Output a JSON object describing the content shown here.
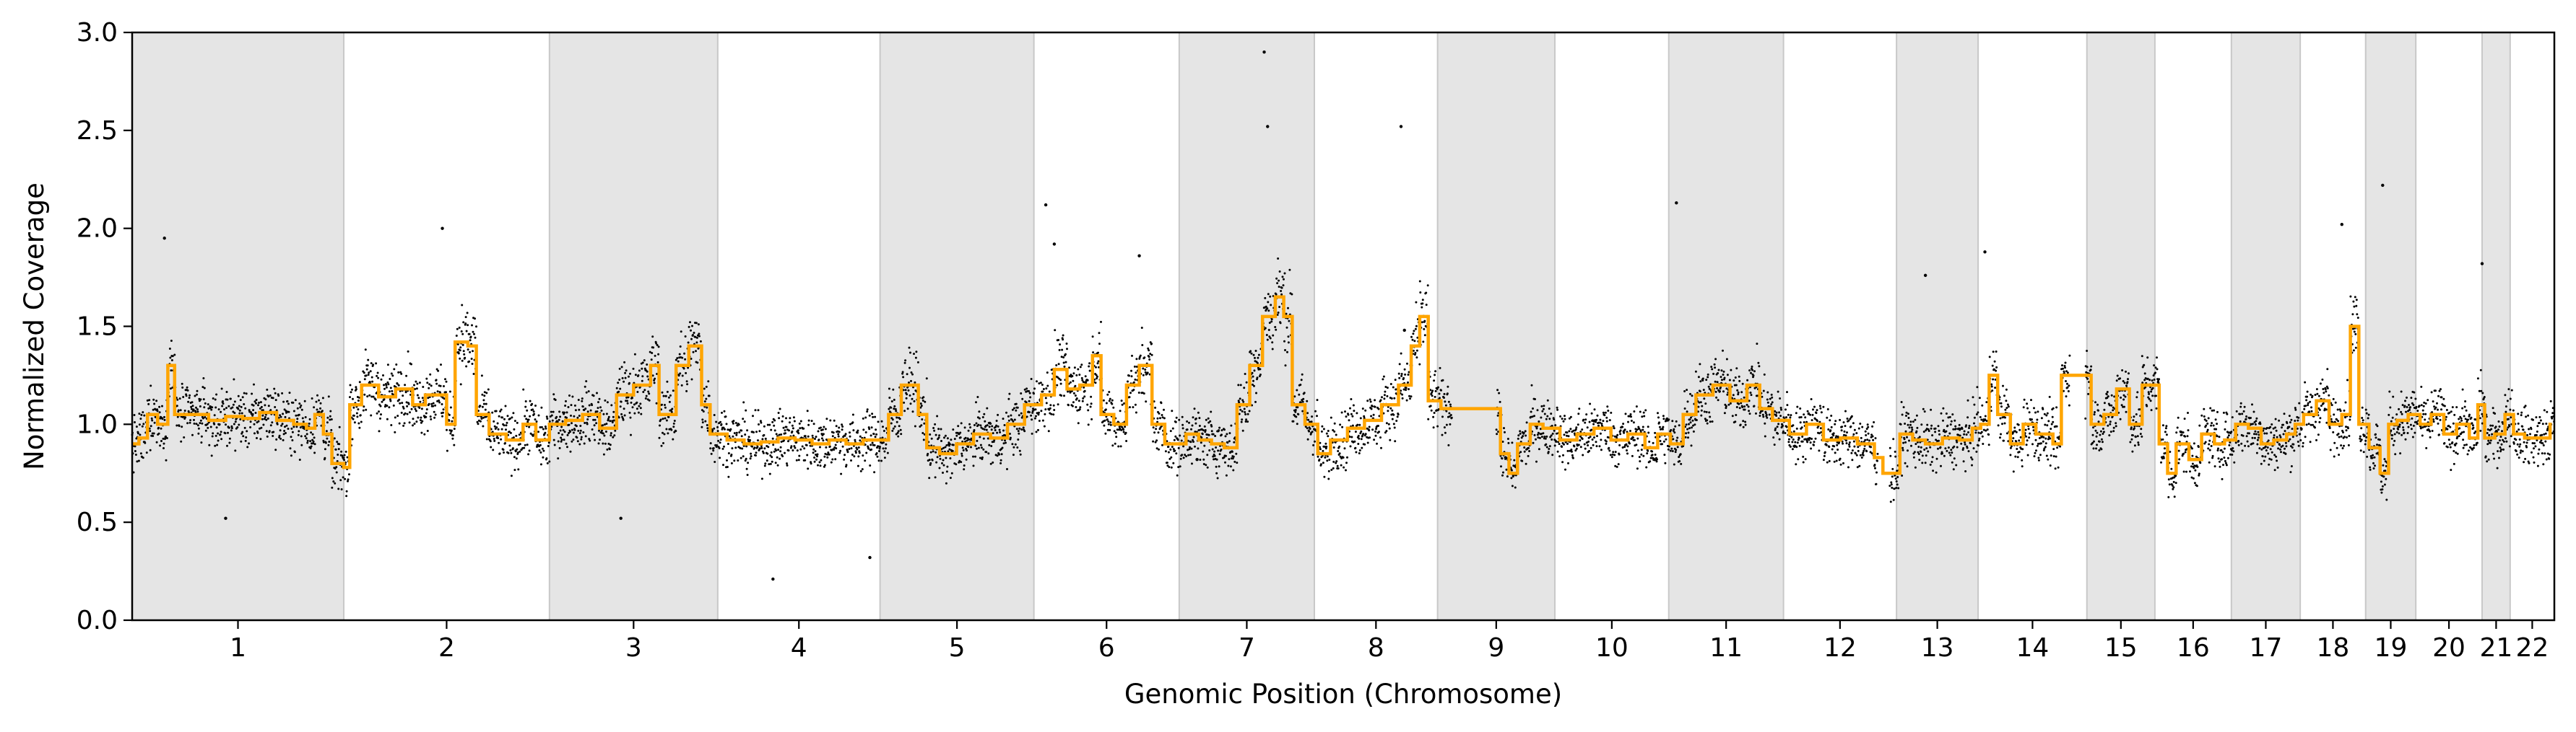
{
  "chart_data": {
    "type": "scatter",
    "xlabel": "Genomic Position (Chromosome)",
    "ylabel": "Normalized Coverage",
    "ylim": [
      0.0,
      3.0
    ],
    "yticks": [
      "0.0",
      "0.5",
      "1.0",
      "1.5",
      "2.0",
      "2.5",
      "3.0"
    ],
    "grid": false,
    "legend": "none",
    "colors": {
      "points": "#000000",
      "segments": "#FFA500",
      "shade": "#e5e5e5"
    },
    "chromosomes": [
      {
        "name": "1",
        "start": 0,
        "end": 249,
        "shaded": true
      },
      {
        "name": "2",
        "start": 249,
        "end": 491,
        "shaded": false
      },
      {
        "name": "3",
        "start": 491,
        "end": 689,
        "shaded": true
      },
      {
        "name": "4",
        "start": 689,
        "end": 880,
        "shaded": false
      },
      {
        "name": "5",
        "start": 880,
        "end": 1061,
        "shaded": true
      },
      {
        "name": "6",
        "start": 1061,
        "end": 1232,
        "shaded": false
      },
      {
        "name": "7",
        "start": 1232,
        "end": 1391,
        "shaded": true
      },
      {
        "name": "8",
        "start": 1391,
        "end": 1536,
        "shaded": false
      },
      {
        "name": "9",
        "start": 1536,
        "end": 1674,
        "shaded": true
      },
      {
        "name": "10",
        "start": 1674,
        "end": 1808,
        "shaded": false
      },
      {
        "name": "11",
        "start": 1808,
        "end": 1943,
        "shaded": true
      },
      {
        "name": "12",
        "start": 1943,
        "end": 2076,
        "shaded": false
      },
      {
        "name": "13",
        "start": 2076,
        "end": 2172,
        "shaded": true
      },
      {
        "name": "14",
        "start": 2172,
        "end": 2300,
        "shaded": false
      },
      {
        "name": "15",
        "start": 2300,
        "end": 2380,
        "shaded": true
      },
      {
        "name": "16",
        "start": 2380,
        "end": 2470,
        "shaded": false
      },
      {
        "name": "17",
        "start": 2470,
        "end": 2551,
        "shaded": true
      },
      {
        "name": "18",
        "start": 2551,
        "end": 2628,
        "shaded": false
      },
      {
        "name": "19",
        "start": 2628,
        "end": 2687,
        "shaded": true
      },
      {
        "name": "20",
        "start": 2687,
        "end": 2765,
        "shaded": false
      },
      {
        "name": "21",
        "start": 2765,
        "end": 2798,
        "shaded": true
      },
      {
        "name": "22",
        "start": 2798,
        "end": 2850,
        "shaded": false
      }
    ],
    "segments": [
      [
        0,
        0.9
      ],
      [
        8,
        0.93
      ],
      [
        18,
        1.05
      ],
      [
        30,
        1.0
      ],
      [
        42,
        1.3
      ],
      [
        50,
        1.05
      ],
      [
        70,
        1.05
      ],
      [
        90,
        1.02
      ],
      [
        110,
        1.04
      ],
      [
        130,
        1.03
      ],
      [
        150,
        1.06
      ],
      [
        170,
        1.02
      ],
      [
        190,
        1.0
      ],
      [
        205,
        0.98
      ],
      [
        215,
        1.05
      ],
      [
        225,
        0.95
      ],
      [
        235,
        0.8
      ],
      [
        249,
        0.78
      ],
      [
        256,
        1.1
      ],
      [
        270,
        1.2
      ],
      [
        290,
        1.14
      ],
      [
        310,
        1.18
      ],
      [
        330,
        1.1
      ],
      [
        345,
        1.15
      ],
      [
        370,
        1.0
      ],
      [
        380,
        1.42
      ],
      [
        395,
        1.4
      ],
      [
        405,
        1.05
      ],
      [
        420,
        0.95
      ],
      [
        440,
        0.92
      ],
      [
        460,
        1.0
      ],
      [
        475,
        0.92
      ],
      [
        491,
        1.0
      ],
      [
        510,
        1.02
      ],
      [
        530,
        1.05
      ],
      [
        550,
        0.98
      ],
      [
        570,
        1.15
      ],
      [
        590,
        1.2
      ],
      [
        610,
        1.3
      ],
      [
        620,
        1.05
      ],
      [
        640,
        1.3
      ],
      [
        655,
        1.4
      ],
      [
        670,
        1.1
      ],
      [
        680,
        0.95
      ],
      [
        700,
        0.92
      ],
      [
        720,
        0.9
      ],
      [
        740,
        0.91
      ],
      [
        760,
        0.93
      ],
      [
        780,
        0.92
      ],
      [
        800,
        0.9
      ],
      [
        820,
        0.92
      ],
      [
        840,
        0.9
      ],
      [
        860,
        0.92
      ],
      [
        870,
        0.92
      ],
      [
        890,
        1.05
      ],
      [
        905,
        1.2
      ],
      [
        915,
        1.2
      ],
      [
        925,
        1.05
      ],
      [
        935,
        0.88
      ],
      [
        950,
        0.85
      ],
      [
        970,
        0.9
      ],
      [
        990,
        0.95
      ],
      [
        1010,
        0.93
      ],
      [
        1030,
        1.0
      ],
      [
        1050,
        1.1
      ],
      [
        1070,
        1.15
      ],
      [
        1085,
        1.28
      ],
      [
        1100,
        1.18
      ],
      [
        1115,
        1.2
      ],
      [
        1130,
        1.35
      ],
      [
        1140,
        1.05
      ],
      [
        1155,
        1.0
      ],
      [
        1170,
        1.2
      ],
      [
        1185,
        1.3
      ],
      [
        1200,
        1.0
      ],
      [
        1215,
        0.9
      ],
      [
        1240,
        0.95
      ],
      [
        1255,
        0.92
      ],
      [
        1270,
        0.9
      ],
      [
        1285,
        0.88
      ],
      [
        1300,
        1.1
      ],
      [
        1315,
        1.3
      ],
      [
        1330,
        1.55
      ],
      [
        1345,
        1.65
      ],
      [
        1355,
        1.55
      ],
      [
        1365,
        1.1
      ],
      [
        1380,
        1.0
      ],
      [
        1395,
        0.85
      ],
      [
        1410,
        0.92
      ],
      [
        1430,
        0.98
      ],
      [
        1450,
        1.02
      ],
      [
        1470,
        1.1
      ],
      [
        1490,
        1.2
      ],
      [
        1505,
        1.4
      ],
      [
        1515,
        1.55
      ],
      [
        1525,
        1.12
      ],
      [
        1540,
        1.08
      ],
      [
        1560,
        1.08
      ],
      [
        1580,
        1.08
      ],
      [
        1600,
        1.08
      ],
      [
        1610,
        0.85
      ],
      [
        1620,
        0.75
      ],
      [
        1630,
        0.9
      ],
      [
        1645,
        1.0
      ],
      [
        1660,
        0.98
      ],
      [
        1680,
        0.92
      ],
      [
        1700,
        0.95
      ],
      [
        1720,
        0.98
      ],
      [
        1740,
        0.92
      ],
      [
        1760,
        0.95
      ],
      [
        1780,
        0.88
      ],
      [
        1795,
        0.95
      ],
      [
        1810,
        0.9
      ],
      [
        1825,
        1.05
      ],
      [
        1840,
        1.15
      ],
      [
        1860,
        1.2
      ],
      [
        1880,
        1.12
      ],
      [
        1900,
        1.2
      ],
      [
        1915,
        1.08
      ],
      [
        1930,
        1.02
      ],
      [
        1950,
        0.95
      ],
      [
        1970,
        1.0
      ],
      [
        1990,
        0.92
      ],
      [
        2010,
        0.93
      ],
      [
        2030,
        0.9
      ],
      [
        2050,
        0.83
      ],
      [
        2060,
        0.75
      ],
      [
        2080,
        0.95
      ],
      [
        2095,
        0.92
      ],
      [
        2110,
        0.9
      ],
      [
        2130,
        0.93
      ],
      [
        2150,
        0.92
      ],
      [
        2165,
        0.98
      ],
      [
        2175,
        1.0
      ],
      [
        2185,
        1.25
      ],
      [
        2195,
        1.05
      ],
      [
        2210,
        0.9
      ],
      [
        2225,
        1.0
      ],
      [
        2240,
        0.95
      ],
      [
        2260,
        0.9
      ],
      [
        2270,
        1.25
      ],
      [
        2290,
        1.25
      ],
      [
        2305,
        1.0
      ],
      [
        2320,
        1.05
      ],
      [
        2335,
        1.18
      ],
      [
        2350,
        1.0
      ],
      [
        2365,
        1.2
      ],
      [
        2375,
        1.2
      ],
      [
        2385,
        0.9
      ],
      [
        2395,
        0.75
      ],
      [
        2405,
        0.9
      ],
      [
        2420,
        0.82
      ],
      [
        2435,
        0.95
      ],
      [
        2450,
        0.9
      ],
      [
        2462,
        0.92
      ],
      [
        2475,
        1.0
      ],
      [
        2490,
        0.98
      ],
      [
        2505,
        0.9
      ],
      [
        2520,
        0.92
      ],
      [
        2535,
        0.95
      ],
      [
        2545,
        1.0
      ],
      [
        2555,
        1.05
      ],
      [
        2570,
        1.12
      ],
      [
        2585,
        1.0
      ],
      [
        2600,
        1.05
      ],
      [
        2610,
        1.5
      ],
      [
        2620,
        1.0
      ],
      [
        2632,
        0.88
      ],
      [
        2645,
        0.75
      ],
      [
        2655,
        1.0
      ],
      [
        2665,
        1.02
      ],
      [
        2678,
        1.05
      ],
      [
        2692,
        1.0
      ],
      [
        2705,
        1.05
      ],
      [
        2720,
        0.95
      ],
      [
        2735,
        1.0
      ],
      [
        2750,
        0.93
      ],
      [
        2760,
        1.1
      ],
      [
        2768,
        0.93
      ],
      [
        2780,
        0.95
      ],
      [
        2792,
        1.05
      ],
      [
        2802,
        0.95
      ],
      [
        2815,
        0.93
      ],
      [
        2830,
        0.93
      ],
      [
        2845,
        1.0
      ]
    ],
    "outliers": [
      [
        38,
        1.95
      ],
      [
        110,
        0.52
      ],
      [
        1253,
        0.82
      ],
      [
        1332,
        2.9
      ],
      [
        1336,
        2.52
      ],
      [
        1493,
        2.52
      ],
      [
        1497,
        1.48
      ],
      [
        1817,
        2.13
      ],
      [
        2110,
        1.76
      ],
      [
        2600,
        2.02
      ],
      [
        2648,
        2.22
      ],
      [
        2765,
        1.82
      ],
      [
        2180,
        1.88
      ],
      [
        1075,
        2.12
      ],
      [
        754,
        0.21
      ],
      [
        868,
        0.32
      ],
      [
        575,
        0.52
      ],
      [
        365,
        2.0
      ],
      [
        1085,
        1.92
      ],
      [
        1185,
        1.86
      ]
    ]
  }
}
